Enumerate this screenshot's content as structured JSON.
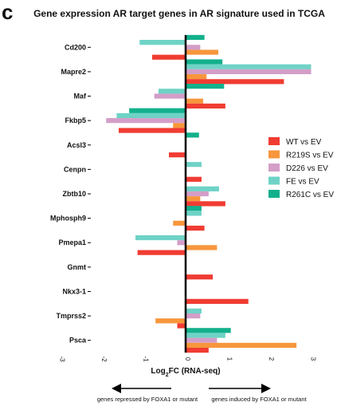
{
  "panel_letter": "c",
  "chart_data": {
    "type": "bar",
    "orientation": "horizontal",
    "title": "Gene expression AR target genes in AR signature used in TCGA",
    "xlabel": "Log2FC (RNA-seq)",
    "xlabel_parts": {
      "base": "Log",
      "sub": "2",
      "rest": "FC (RNA-seq)"
    },
    "xlim": [
      -3,
      3
    ],
    "xticks": [
      -3,
      -2,
      -1,
      0,
      1,
      2,
      3
    ],
    "xtick_labels": [
      "-3",
      "-2",
      "-1",
      "0",
      "1",
      "2",
      "3"
    ],
    "categories": [
      "Cd200",
      "Mapre2",
      "Maf",
      "Fkbp5",
      "Acsl3",
      "Cenpn",
      "Zbtb10",
      "Mphosph9",
      "Pmepa1",
      "Gnmt",
      "Nkx3-1",
      "Tmprss2",
      "Psca"
    ],
    "series": [
      {
        "name": "WT vs EV",
        "color": "#f03c32",
        "values": [
          -0.8,
          2.35,
          0.95,
          -1.6,
          -0.4,
          0.38,
          0.95,
          0.45,
          -1.15,
          0.65,
          1.5,
          -0.2,
          0.55
        ]
      },
      {
        "name": "R219S vs EV",
        "color": "#f7963c",
        "values": [
          0.78,
          0.5,
          0.42,
          -0.3,
          0.0,
          0.0,
          0.35,
          -0.3,
          0.75,
          0.0,
          0.0,
          -0.72,
          2.65
        ]
      },
      {
        "name": "D226 vs EV",
        "color": "#d39ec8",
        "values": [
          0.35,
          3.0,
          -0.75,
          -1.9,
          0.0,
          0.0,
          0.55,
          0.0,
          -0.2,
          0.0,
          0.0,
          0.35,
          0.75
        ]
      },
      {
        "name": "FE vs EV",
        "color": "#6ed3c6",
        "values": [
          -1.1,
          3.0,
          -0.65,
          -1.65,
          0.0,
          0.38,
          0.8,
          0.38,
          -1.2,
          0.0,
          0.0,
          0.38,
          0.95
        ]
      },
      {
        "name": "R261C vs EV",
        "color": "#13b08c",
        "values": [
          0.45,
          0.88,
          0.92,
          -1.35,
          0.32,
          0.0,
          0.0,
          0.38,
          0.0,
          0.0,
          0.0,
          0.0,
          1.08
        ]
      }
    ],
    "grid": false,
    "legend_position": "right"
  },
  "annotations": {
    "left_arrow_text": "genes repressed by FOXA1 or mutant",
    "right_arrow_text": "genes induced by FOXA1 or mutant"
  }
}
